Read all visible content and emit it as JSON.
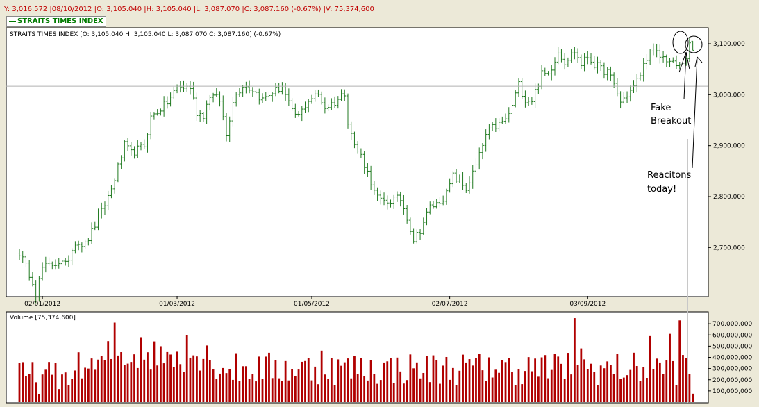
{
  "info_bar": "Y: 3,016.572 |08/10/2012 |O: 3,105.040 |H: 3,105.040 |L: 3,087.070 |C: 3,087.160 (-0.67%) |V: 75,374,600",
  "legend_label": "STRAITS TIMES INDEX",
  "price_panel_title": "STRAITS TIMES INDEX [O: 3,105.040  H: 3,105.040  L: 3,087.070  C: 3,087.160] (-0.67%)",
  "volume_panel_title": "Volume [75,374,600]",
  "crosshair_value": 3016.572,
  "annotations": {
    "fake_breakout_line1": "Fake",
    "fake_breakout_line2": "Breakout",
    "reactions_line1": "Reacitons",
    "reactions_line2": "today!"
  },
  "colors": {
    "price_bars": "#207a20",
    "volume_bars": "#b00000",
    "info_text": "#c00000",
    "legend_text": "#007a00",
    "grid": "#c8c8c8"
  },
  "chart_data": [
    {
      "type": "ohlc",
      "name": "STRAITS TIMES INDEX",
      "x_tick_labels": [
        "02/01/2012",
        "01/03/2012",
        "01/05/2012",
        "02/07/2012",
        "03/09/2012"
      ],
      "y_tick_labels": [
        "2,700.000",
        "2,800.000",
        "2,900.000",
        "3,000.000",
        "3,100.000"
      ],
      "y_ticks": [
        2700,
        2800,
        2900,
        3000,
        3100
      ],
      "ylim": [
        2605,
        3130
      ],
      "grid": "horizontal line at crosshair only",
      "axis_position": "right",
      "last_bar": {
        "date": "08/10/2012",
        "open": 3105.04,
        "high": 3105.04,
        "low": 3087.07,
        "close": 3087.16
      },
      "keypoints": [
        [
          0,
          2690
        ],
        [
          4,
          2635
        ],
        [
          5,
          2610
        ],
        [
          7,
          2660
        ],
        [
          12,
          2672
        ],
        [
          14,
          2665
        ],
        [
          17,
          2712
        ],
        [
          20,
          2705
        ],
        [
          25,
          2770
        ],
        [
          28,
          2815
        ],
        [
          32,
          2900
        ],
        [
          34,
          2885
        ],
        [
          38,
          2900
        ],
        [
          40,
          2955
        ],
        [
          45,
          2985
        ],
        [
          48,
          3015
        ],
        [
          52,
          3015
        ],
        [
          54,
          2965
        ],
        [
          56,
          2960
        ],
        [
          58,
          3000
        ],
        [
          61,
          2990
        ],
        [
          63,
          2920
        ],
        [
          65,
          2990
        ],
        [
          68,
          3020
        ],
        [
          71,
          3010
        ],
        [
          74,
          2990
        ],
        [
          77,
          3005
        ],
        [
          80,
          3015
        ],
        [
          83,
          2965
        ],
        [
          85,
          2958
        ],
        [
          88,
          2990
        ],
        [
          91,
          3000
        ],
        [
          93,
          2975
        ],
        [
          96,
          2985
        ],
        [
          99,
          3005
        ],
        [
          100,
          2950
        ],
        [
          102,
          2900
        ],
        [
          104,
          2880
        ],
        [
          107,
          2830
        ],
        [
          108,
          2808
        ],
        [
          110,
          2790
        ],
        [
          112,
          2790
        ],
        [
          114,
          2795
        ],
        [
          116,
          2795
        ],
        [
          118,
          2760
        ],
        [
          120,
          2715
        ],
        [
          122,
          2735
        ],
        [
          125,
          2780
        ],
        [
          127,
          2785
        ],
        [
          130,
          2805
        ],
        [
          132,
          2840
        ],
        [
          134,
          2830
        ],
        [
          136,
          2815
        ],
        [
          139,
          2860
        ],
        [
          142,
          2920
        ],
        [
          144,
          2935
        ],
        [
          147,
          2945
        ],
        [
          149,
          2960
        ],
        [
          152,
          3020
        ],
        [
          154,
          2990
        ],
        [
          156,
          2990
        ],
        [
          159,
          3040
        ],
        [
          161,
          3040
        ],
        [
          164,
          3085
        ],
        [
          166,
          3065
        ],
        [
          169,
          3085
        ],
        [
          171,
          3060
        ],
        [
          173,
          3075
        ],
        [
          175,
          3060
        ],
        [
          177,
          3050
        ],
        [
          179,
          3045
        ],
        [
          181,
          3020
        ],
        [
          183,
          2985
        ],
        [
          185,
          3000
        ],
        [
          187,
          3015
        ],
        [
          189,
          3040
        ],
        [
          191,
          3075
        ],
        [
          193,
          3085
        ],
        [
          195,
          3075
        ],
        [
          197,
          3070
        ],
        [
          199,
          3060
        ],
        [
          201,
          3055
        ],
        [
          203,
          3075
        ],
        [
          204,
          3095
        ]
      ]
    },
    {
      "type": "bar",
      "name": "Volume",
      "last_value": 75374600,
      "y_tick_labels": [
        "100,000,000",
        "200,000,000",
        "300,000,000",
        "400,000,000",
        "500,000,000",
        "600,000,000",
        "700,000,000"
      ],
      "y_ticks": [
        100000000,
        200000000,
        300000000,
        400000000,
        500000000,
        600000000,
        700000000
      ],
      "ylim": [
        0,
        800000000
      ],
      "spikes": [
        [
          16,
          210000000
        ],
        [
          29,
          710000000
        ],
        [
          37,
          580000000
        ],
        [
          48,
          450000000
        ],
        [
          51,
          600000000
        ],
        [
          92,
          460000000
        ],
        [
          143,
          400000000
        ],
        [
          167,
          440000000
        ],
        [
          169,
          750000000
        ],
        [
          171,
          480000000
        ],
        [
          192,
          590000000
        ],
        [
          198,
          610000000
        ],
        [
          201,
          730000000
        ],
        [
          205,
          75374600
        ]
      ]
    }
  ]
}
